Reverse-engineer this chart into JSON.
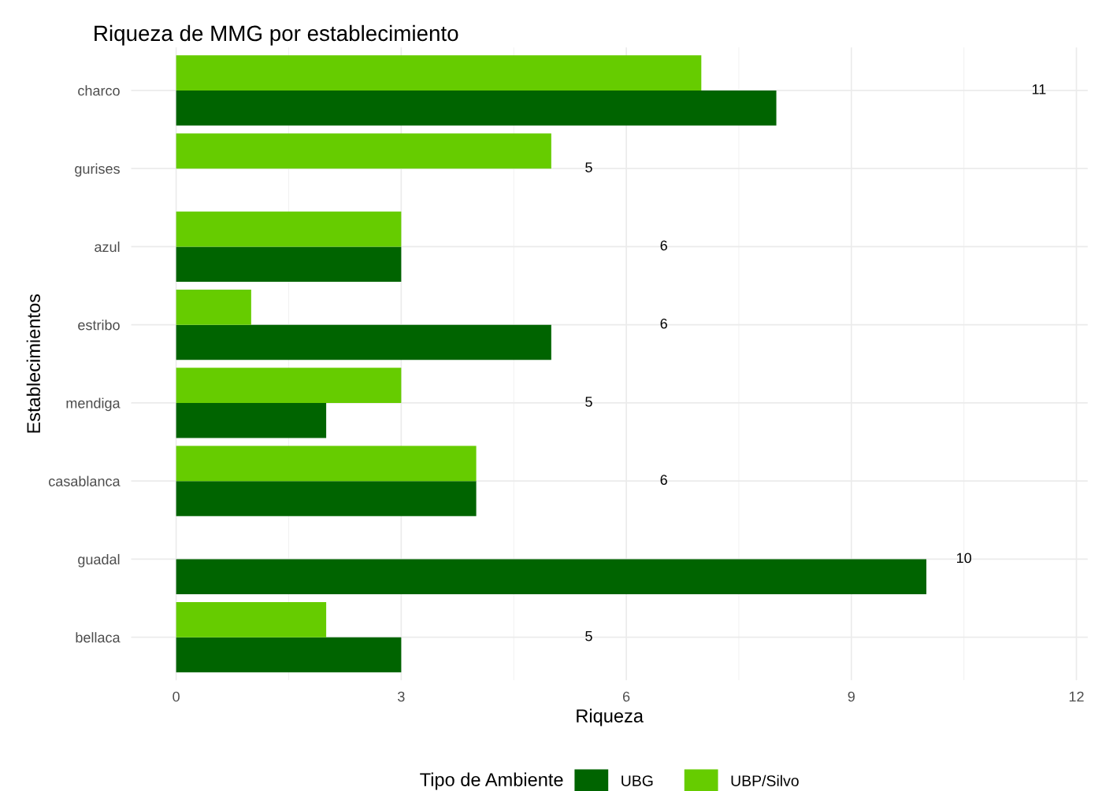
{
  "chart_data": {
    "type": "bar",
    "orientation": "horizontal",
    "title": "Riqueza de MMG por establecimiento",
    "xlabel": "Riqueza",
    "ylabel": "Establecimientos",
    "legend_title": "Tipo de Ambiente",
    "categories": [
      "charco",
      "gurises",
      "azul",
      "estribo",
      "mendiga",
      "casablanca",
      "guadal",
      "bellaca"
    ],
    "series": [
      {
        "name": "UBG",
        "color": "#006400",
        "values": [
          8,
          null,
          3,
          5,
          2,
          4,
          10,
          3
        ]
      },
      {
        "name": "UBP/Silvo",
        "color": "#66cc00",
        "values": [
          7,
          5,
          3,
          1,
          3,
          4,
          null,
          2
        ]
      }
    ],
    "xlim": [
      -0.6,
      12.15
    ],
    "xticks": [
      0,
      3,
      6,
      9,
      12
    ],
    "grid": true,
    "legend": "bottom",
    "annotations": [
      "11",
      "5",
      "6",
      "6",
      "5",
      "6",
      "10",
      "5"
    ]
  }
}
